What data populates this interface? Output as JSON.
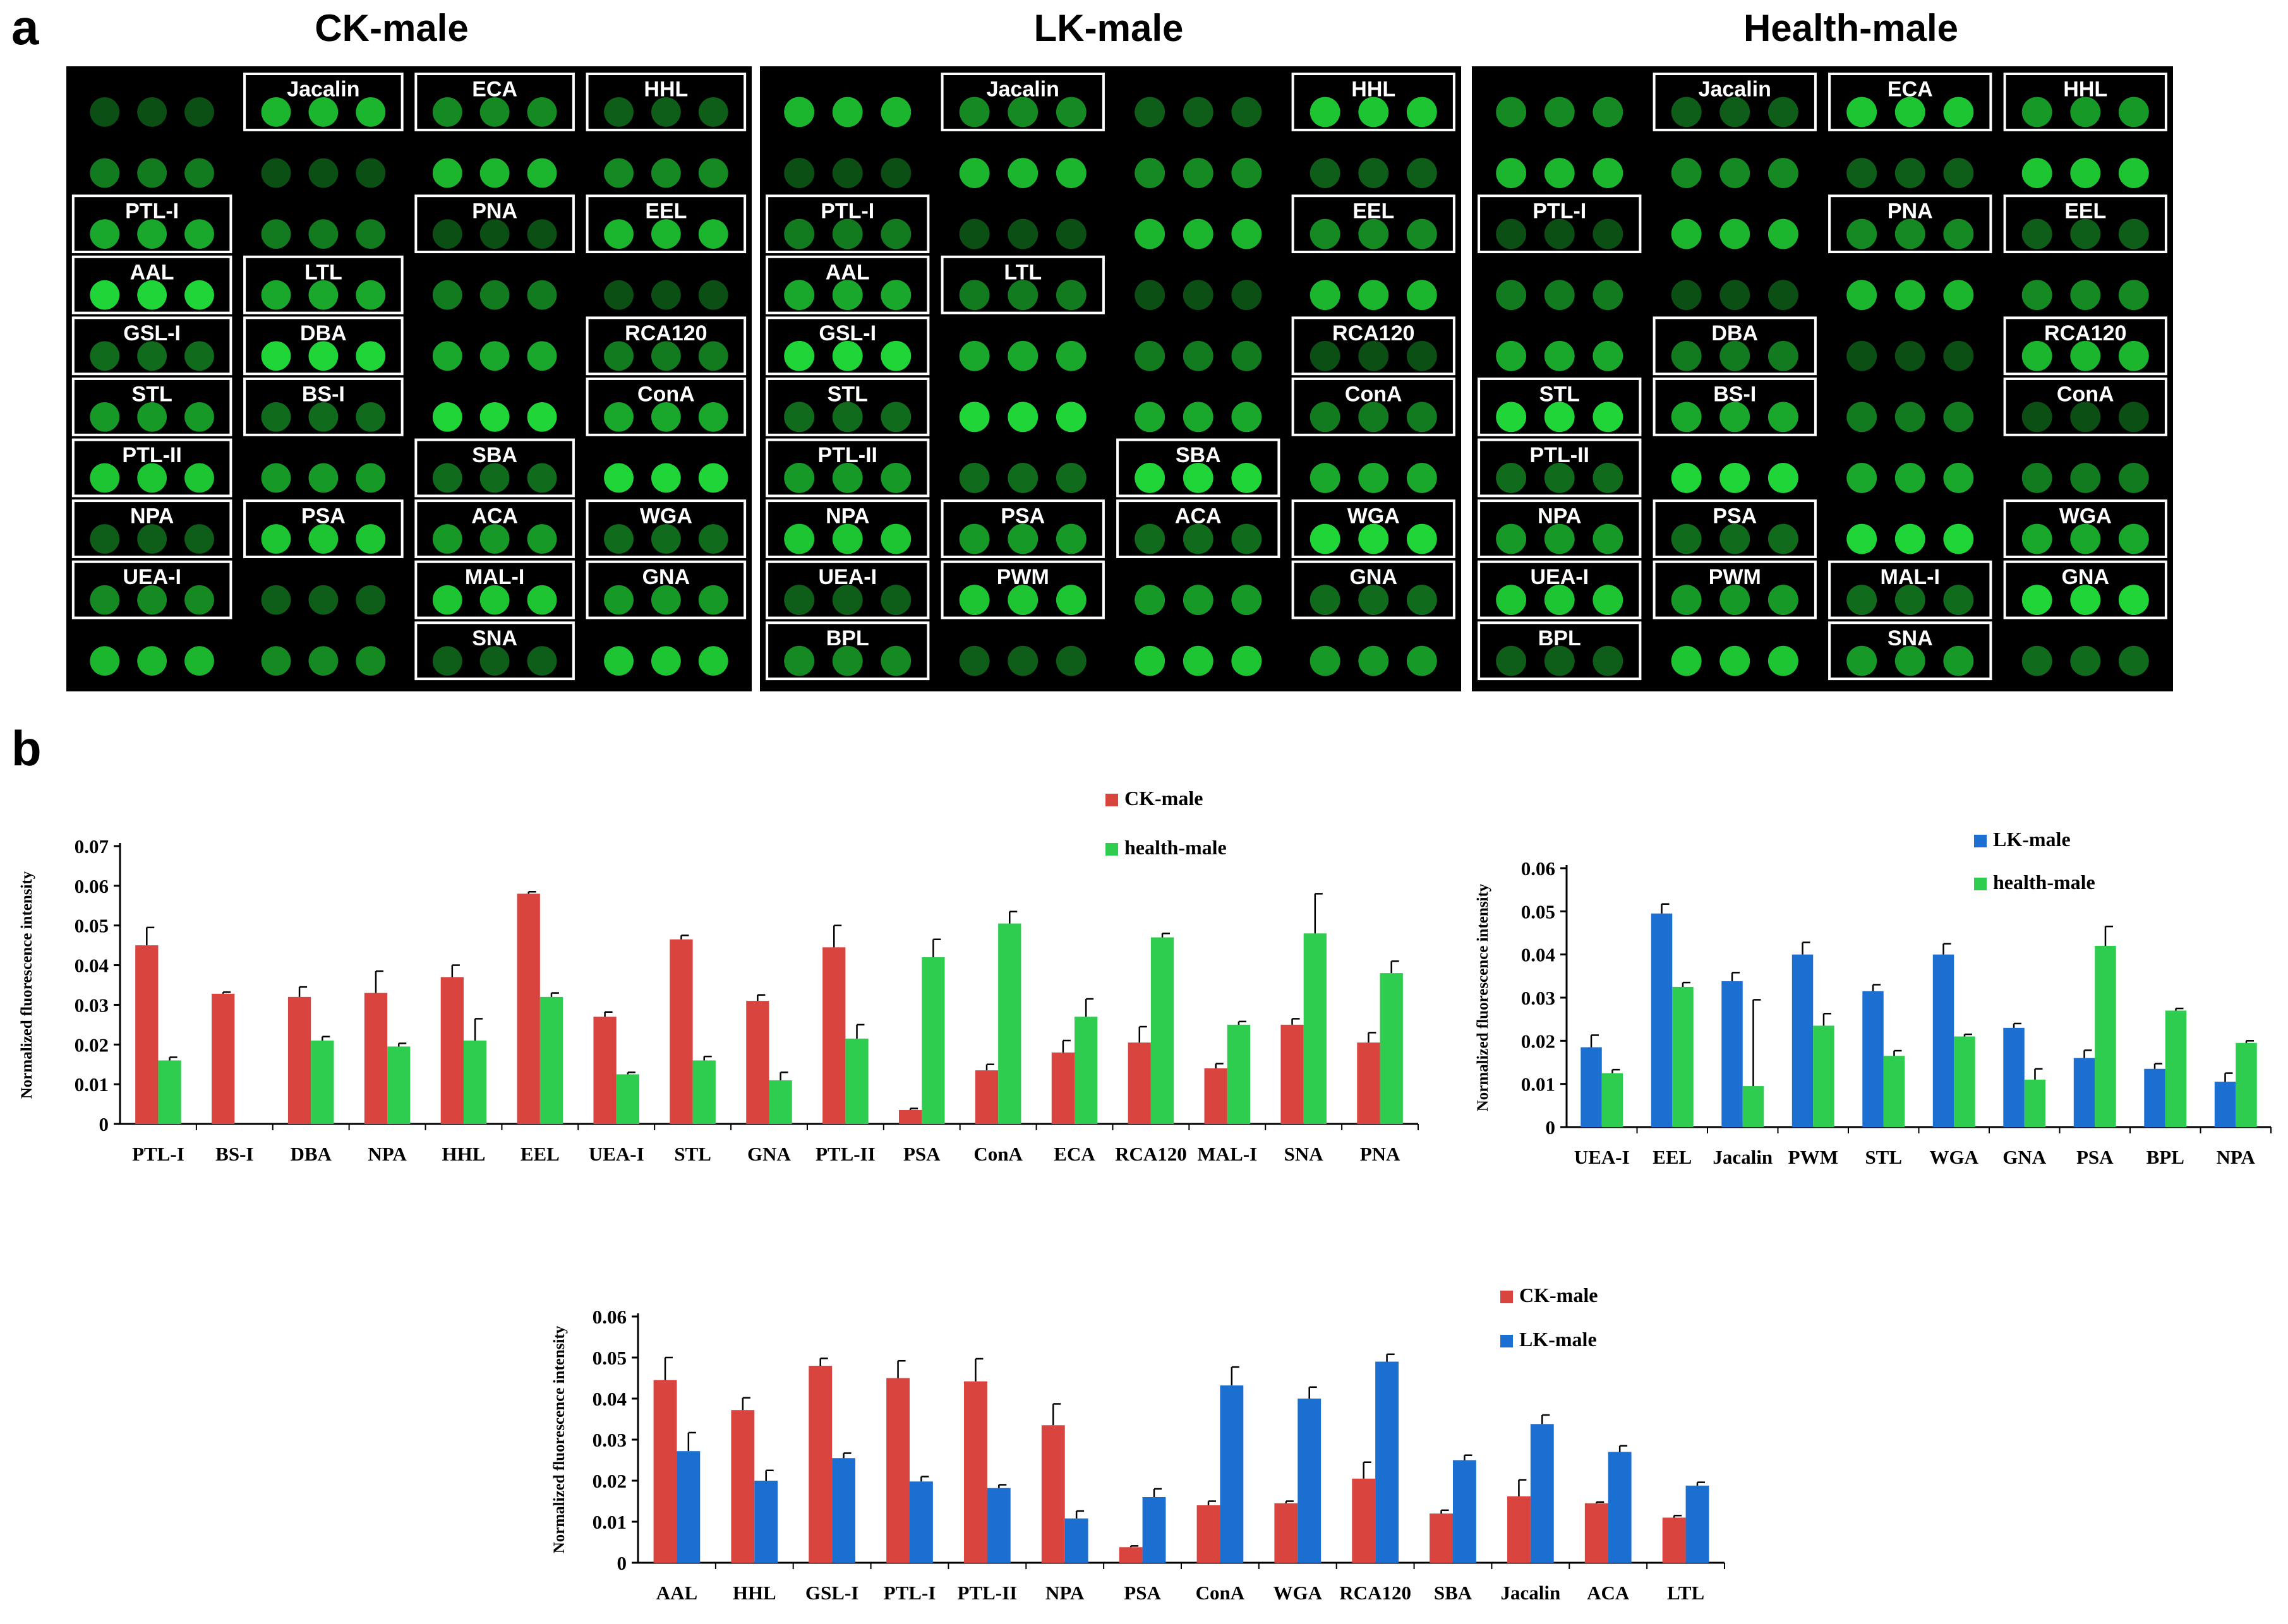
{
  "figure": {
    "panel_a_label": "a",
    "panel_b_label": "b",
    "microarray_titles": [
      "CK-male",
      "LK-male",
      "Health-male"
    ]
  },
  "microarrays": [
    {
      "name": "CK-male",
      "boxed_lectins": [
        {
          "label": "Jacalin",
          "col": 1,
          "row": 0
        },
        {
          "label": "ECA",
          "col": 2,
          "row": 0
        },
        {
          "label": "HHL",
          "col": 3,
          "row": 0
        },
        {
          "label": "PTL-I",
          "col": 0,
          "row": 2
        },
        {
          "label": "PNA",
          "col": 2,
          "row": 2
        },
        {
          "label": "EEL",
          "col": 3,
          "row": 2
        },
        {
          "label": "AAL",
          "col": 0,
          "row": 3
        },
        {
          "label": "LTL",
          "col": 1,
          "row": 3
        },
        {
          "label": "GSL-I",
          "col": 0,
          "row": 4
        },
        {
          "label": "DBA",
          "col": 1,
          "row": 4
        },
        {
          "label": "RCA120",
          "col": 3,
          "row": 4
        },
        {
          "label": "STL",
          "col": 0,
          "row": 5
        },
        {
          "label": "BS-I",
          "col": 1,
          "row": 5
        },
        {
          "label": "ConA",
          "col": 3,
          "row": 5
        },
        {
          "label": "PTL-II",
          "col": 0,
          "row": 6
        },
        {
          "label": "SBA",
          "col": 2,
          "row": 6
        },
        {
          "label": "NPA",
          "col": 0,
          "row": 7
        },
        {
          "label": "PSA",
          "col": 1,
          "row": 7
        },
        {
          "label": "ACA",
          "col": 2,
          "row": 7
        },
        {
          "label": "WGA",
          "col": 3,
          "row": 7
        },
        {
          "label": "UEA-I",
          "col": 0,
          "row": 8
        },
        {
          "label": "MAL-I",
          "col": 2,
          "row": 8
        },
        {
          "label": "GNA",
          "col": 3,
          "row": 8
        },
        {
          "label": "SNA",
          "col": 2,
          "row": 9
        }
      ]
    },
    {
      "name": "LK-male",
      "boxed_lectins": [
        {
          "label": "Jacalin",
          "col": 1,
          "row": 0
        },
        {
          "label": "HHL",
          "col": 3,
          "row": 0
        },
        {
          "label": "PTL-I",
          "col": 0,
          "row": 2
        },
        {
          "label": "EEL",
          "col": 3,
          "row": 2
        },
        {
          "label": "AAL",
          "col": 0,
          "row": 3
        },
        {
          "label": "LTL",
          "col": 1,
          "row": 3
        },
        {
          "label": "GSL-I",
          "col": 0,
          "row": 4
        },
        {
          "label": "RCA120",
          "col": 3,
          "row": 4
        },
        {
          "label": "STL",
          "col": 0,
          "row": 5
        },
        {
          "label": "ConA",
          "col": 3,
          "row": 5
        },
        {
          "label": "PTL-II",
          "col": 0,
          "row": 6
        },
        {
          "label": "SBA",
          "col": 2,
          "row": 6
        },
        {
          "label": "NPA",
          "col": 0,
          "row": 7
        },
        {
          "label": "PSA",
          "col": 1,
          "row": 7
        },
        {
          "label": "ACA",
          "col": 2,
          "row": 7
        },
        {
          "label": "WGA",
          "col": 3,
          "row": 7
        },
        {
          "label": "UEA-I",
          "col": 0,
          "row": 8
        },
        {
          "label": "PWM",
          "col": 1,
          "row": 8
        },
        {
          "label": "GNA",
          "col": 3,
          "row": 8
        },
        {
          "label": "BPL",
          "col": 0,
          "row": 9
        }
      ]
    },
    {
      "name": "Health-male",
      "boxed_lectins": [
        {
          "label": "Jacalin",
          "col": 1,
          "row": 0
        },
        {
          "label": "ECA",
          "col": 2,
          "row": 0
        },
        {
          "label": "HHL",
          "col": 3,
          "row": 0
        },
        {
          "label": "PTL-I",
          "col": 0,
          "row": 2
        },
        {
          "label": "PNA",
          "col": 2,
          "row": 2
        },
        {
          "label": "EEL",
          "col": 3,
          "row": 2
        },
        {
          "label": "DBA",
          "col": 1,
          "row": 4
        },
        {
          "label": "RCA120",
          "col": 3,
          "row": 4
        },
        {
          "label": "STL",
          "col": 0,
          "row": 5
        },
        {
          "label": "BS-I",
          "col": 1,
          "row": 5
        },
        {
          "label": "ConA",
          "col": 3,
          "row": 5
        },
        {
          "label": "PTL-II",
          "col": 0,
          "row": 6
        },
        {
          "label": "NPA",
          "col": 0,
          "row": 7
        },
        {
          "label": "PSA",
          "col": 1,
          "row": 7
        },
        {
          "label": "WGA",
          "col": 3,
          "row": 7
        },
        {
          "label": "UEA-I",
          "col": 0,
          "row": 8
        },
        {
          "label": "PWM",
          "col": 1,
          "row": 8
        },
        {
          "label": "MAL-I",
          "col": 2,
          "row": 8
        },
        {
          "label": "GNA",
          "col": 3,
          "row": 8
        },
        {
          "label": "BPL",
          "col": 0,
          "row": 9
        },
        {
          "label": "SNA",
          "col": 2,
          "row": 9
        }
      ]
    }
  ],
  "colors": {
    "red": "#d9443f",
    "green": "#2ecc4f",
    "blue": "#1a6fd0",
    "spot": "#22e23a",
    "array_bg": "#000000"
  },
  "chart_data": [
    {
      "type": "bar",
      "title": "",
      "xlabel": "",
      "ylabel": "Normalized fluorescence intensity",
      "ylim": [
        0,
        0.07
      ],
      "yticks": [
        "0",
        "0.01",
        "0.02",
        "0.03",
        "0.04",
        "0.05",
        "0.06",
        "0.07"
      ],
      "legend_position": "top-center",
      "categories": [
        "PTL-I",
        "BS-I",
        "DBA",
        "NPA",
        "HHL",
        "EEL",
        "UEA-I",
        "STL",
        "GNA",
        "PTL-II",
        "PSA",
        "ConA",
        "ECA",
        "RCA120",
        "MAL-I",
        "SNA",
        "PNA"
      ],
      "series": [
        {
          "name": "CK-male",
          "color": "#d9443f",
          "values": [
            0.045,
            0.0328,
            0.032,
            0.033,
            0.037,
            0.058,
            0.027,
            0.0465,
            0.031,
            0.0445,
            0.0035,
            0.0135,
            0.018,
            0.0205,
            0.014,
            0.025,
            0.0205
          ],
          "errors": [
            0.0045,
            0.0004,
            0.0025,
            0.0055,
            0.003,
            0.0005,
            0.0012,
            0.001,
            0.0015,
            0.0055,
            0.0004,
            0.0015,
            0.003,
            0.004,
            0.0012,
            0.0015,
            0.0025
          ]
        },
        {
          "name": "health-male",
          "color": "#2ecc4f",
          "values": [
            0.016,
            0,
            0.021,
            0.0195,
            0.021,
            0.032,
            0.0125,
            0.016,
            0.011,
            0.0215,
            0.042,
            0.0505,
            0.027,
            0.047,
            0.025,
            0.048,
            0.038
          ],
          "errors": [
            0.0008,
            0,
            0.001,
            0.0008,
            0.0055,
            0.001,
            0.0005,
            0.001,
            0.002,
            0.0035,
            0.0045,
            0.003,
            0.0045,
            0.001,
            0.0008,
            0.01,
            0.003
          ]
        }
      ]
    },
    {
      "type": "bar",
      "title": "",
      "xlabel": "",
      "ylabel": "Normalized fluorescence intensity",
      "ylim": [
        0,
        0.06
      ],
      "yticks": [
        "0",
        "0.01",
        "0.02",
        "0.03",
        "0.04",
        "0.05",
        "0.06"
      ],
      "legend_position": "top-right",
      "categories": [
        "UEA-I",
        "EEL",
        "Jacalin",
        "PWM",
        "STL",
        "WGA",
        "GNA",
        "PSA",
        "BPL",
        "NPA"
      ],
      "series": [
        {
          "name": "LK-male",
          "color": "#1a6fd0",
          "values": [
            0.0185,
            0.0495,
            0.0338,
            0.04,
            0.0315,
            0.04,
            0.023,
            0.016,
            0.0135,
            0.0105
          ],
          "errors": [
            0.0028,
            0.0022,
            0.002,
            0.0028,
            0.0015,
            0.0025,
            0.001,
            0.0018,
            0.0012,
            0.002
          ]
        },
        {
          "name": "health-male",
          "color": "#2ecc4f",
          "values": [
            0.0125,
            0.0325,
            0.0095,
            0.0235,
            0.0165,
            0.021,
            0.011,
            0.042,
            0.027,
            0.0195
          ],
          "errors": [
            0.0008,
            0.001,
            0.02,
            0.0028,
            0.0012,
            0.0005,
            0.0025,
            0.0045,
            0.0005,
            0.0005
          ]
        }
      ]
    },
    {
      "type": "bar",
      "title": "",
      "xlabel": "",
      "ylabel": "Normalized fluorescence intensity",
      "ylim": [
        0,
        0.06
      ],
      "yticks": [
        "0",
        "0.01",
        "0.02",
        "0.03",
        "0.04",
        "0.05",
        "0.06"
      ],
      "legend_position": "top-right",
      "categories": [
        "AAL",
        "HHL",
        "GSL-I",
        "PTL-I",
        "PTL-II",
        "NPA",
        "PSA",
        "ConA",
        "WGA",
        "RCA120",
        "SBA",
        "Jacalin",
        "ACA",
        "LTL"
      ],
      "series": [
        {
          "name": "CK-male",
          "color": "#d9443f",
          "values": [
            0.0445,
            0.0372,
            0.048,
            0.045,
            0.0442,
            0.0335,
            0.0038,
            0.014,
            0.0145,
            0.0205,
            0.012,
            0.0162,
            0.0145,
            0.011
          ],
          "errors": [
            0.0055,
            0.003,
            0.0018,
            0.0042,
            0.0055,
            0.0052,
            0.0003,
            0.001,
            0.0005,
            0.004,
            0.0008,
            0.004,
            0.0003,
            0.0005
          ]
        },
        {
          "name": "LK-male",
          "color": "#1a6fd0",
          "values": [
            0.0272,
            0.02,
            0.0255,
            0.0198,
            0.0182,
            0.0108,
            0.016,
            0.0432,
            0.04,
            0.049,
            0.025,
            0.0338,
            0.027,
            0.0188
          ],
          "errors": [
            0.0045,
            0.0025,
            0.0012,
            0.0012,
            0.0008,
            0.0018,
            0.002,
            0.0045,
            0.0028,
            0.0018,
            0.0012,
            0.0022,
            0.0015,
            0.0008
          ]
        }
      ]
    }
  ]
}
